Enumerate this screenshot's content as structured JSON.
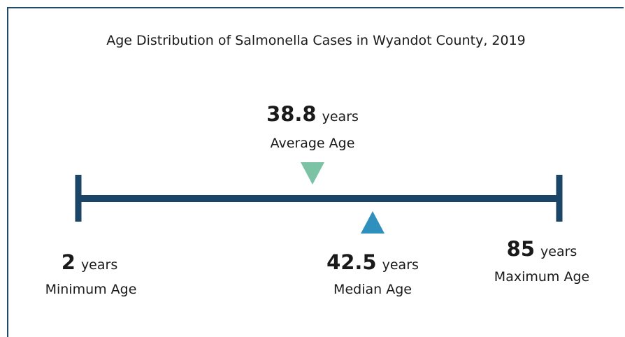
{
  "title": "Age Distribution of Salmonella Cases in Wyandot County, 2019",
  "average": {
    "value": 38.8,
    "unit": "years",
    "label": "Average Age"
  },
  "minimum": {
    "value": 2,
    "unit": "years",
    "label": "Minimum Age"
  },
  "median": {
    "value": 42.5,
    "unit": "years",
    "label": "Median Age"
  },
  "maximum": {
    "value": 85,
    "unit": "years",
    "label": "Maximum Age"
  }
}
